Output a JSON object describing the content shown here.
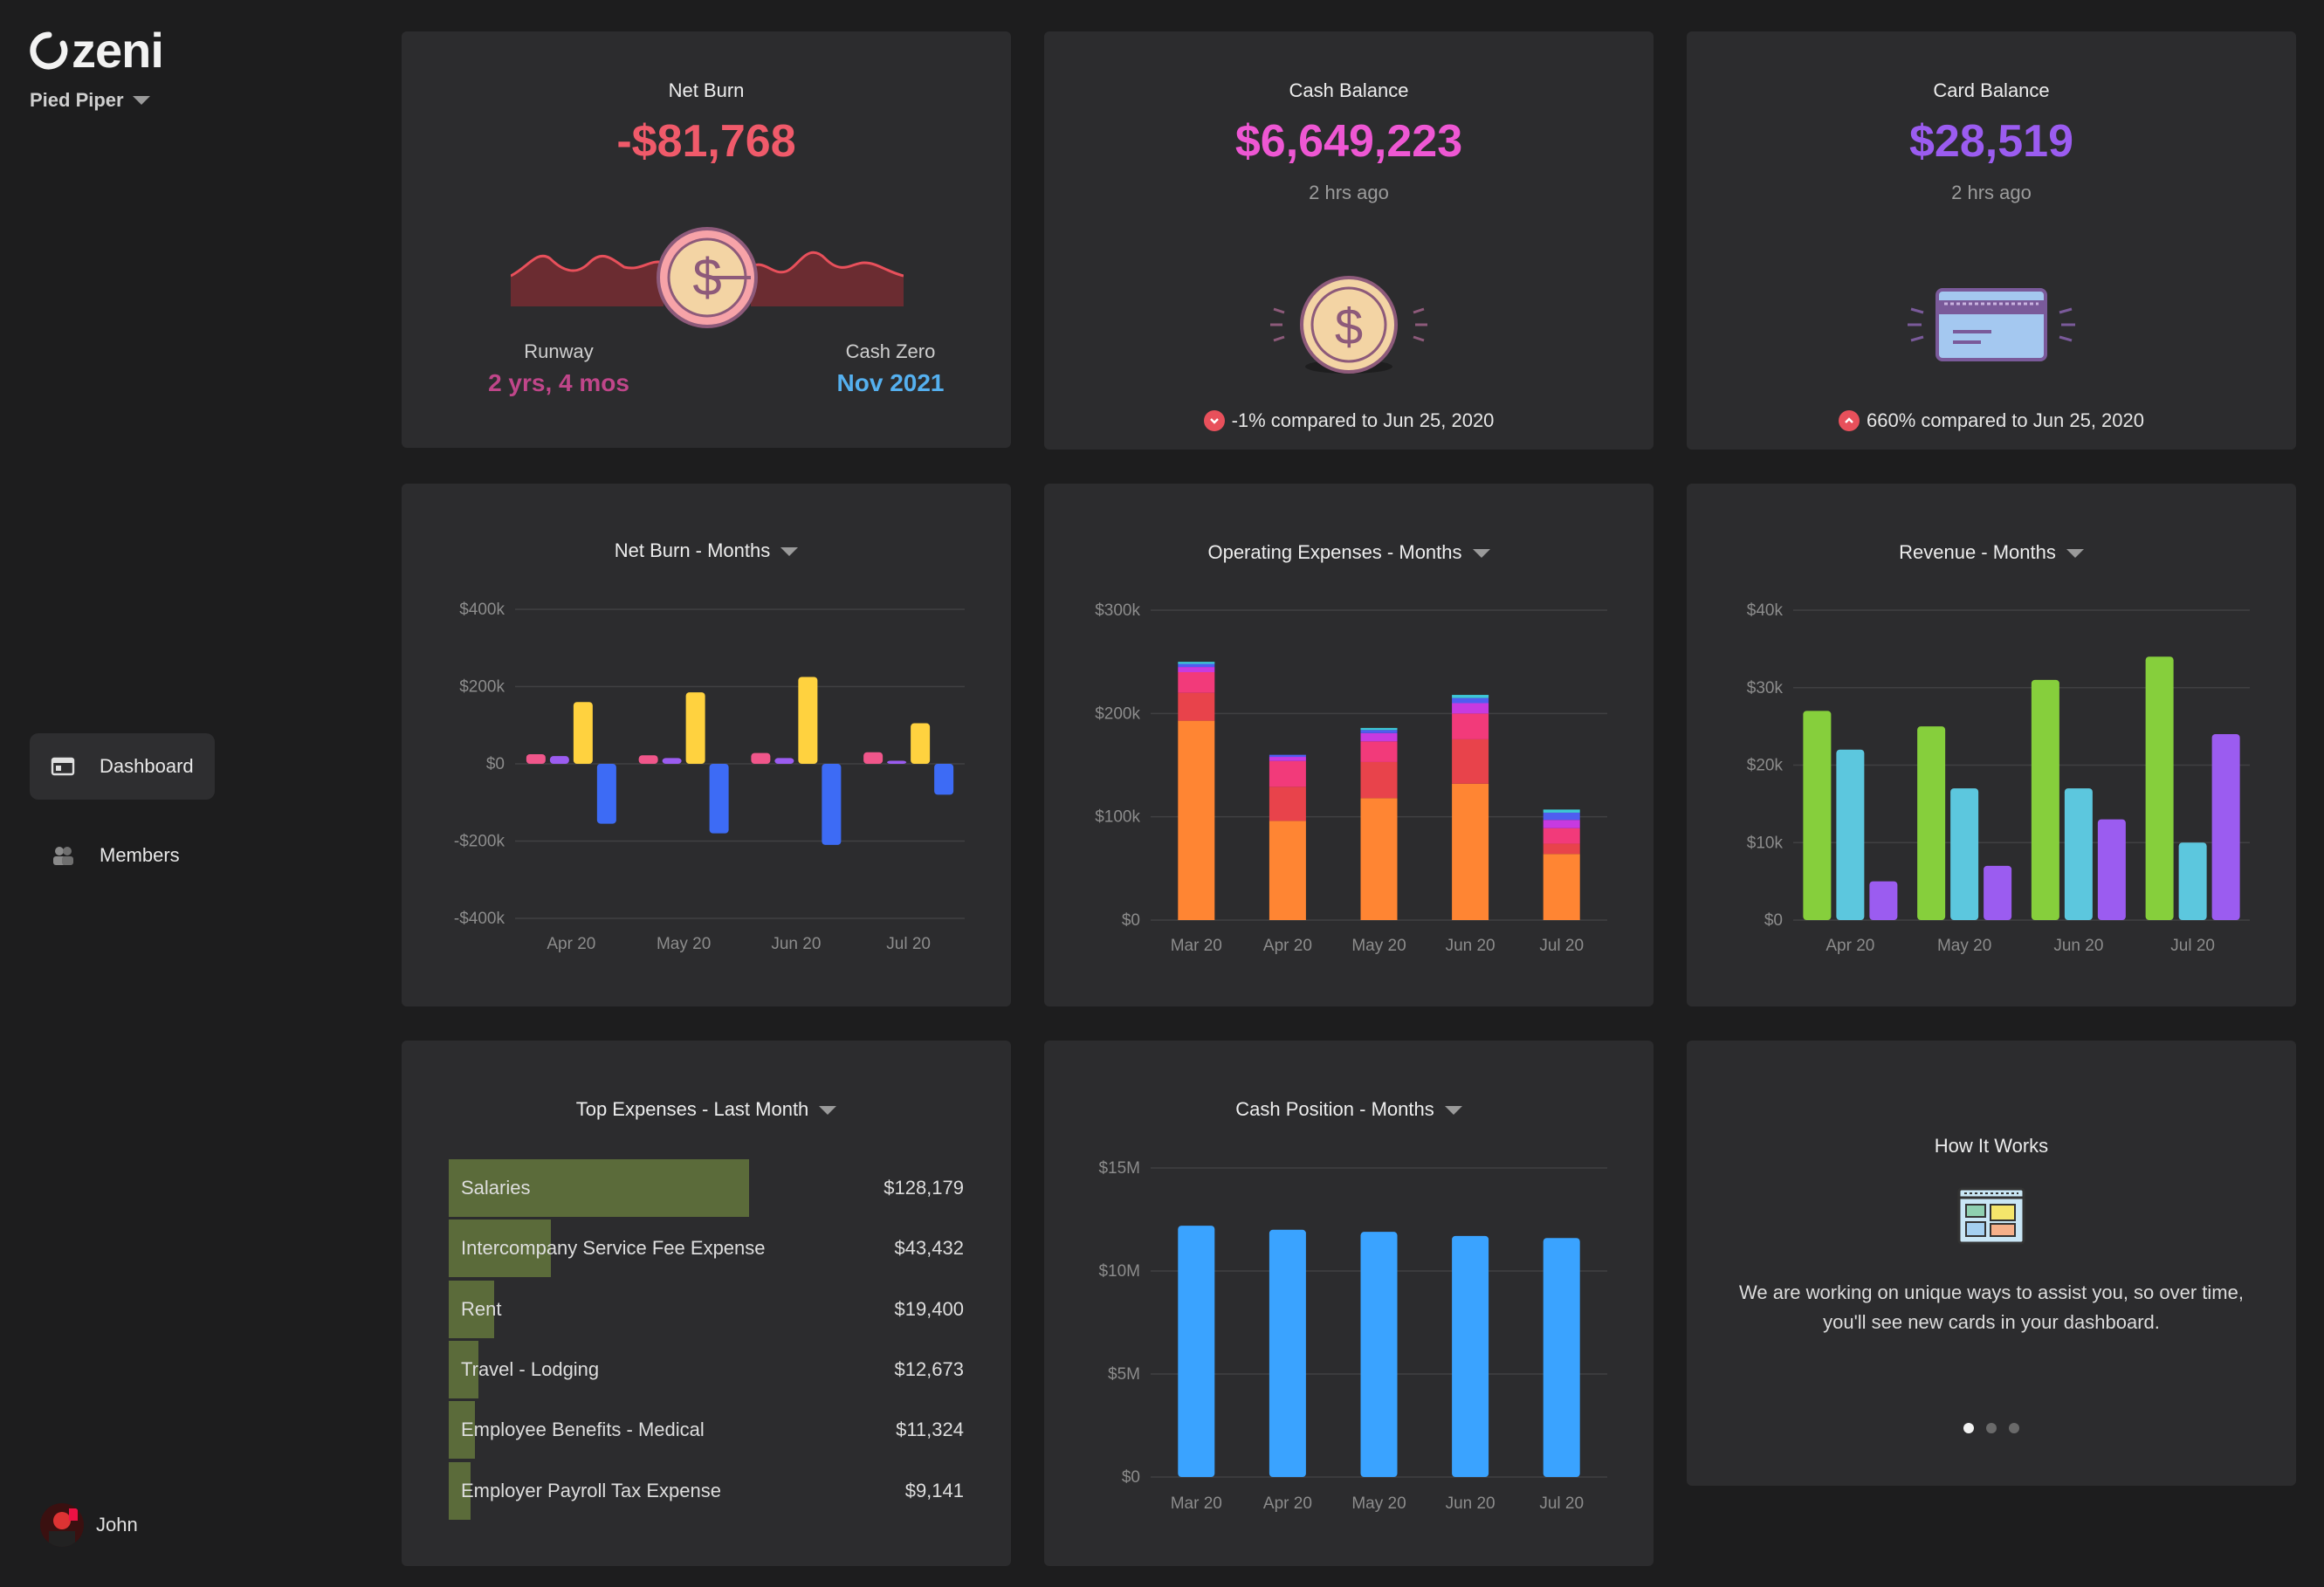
{
  "app": {
    "brand": "zeni",
    "org": "Pied Piper"
  },
  "nav": [
    {
      "label": "Dashboard",
      "icon": "dashboard-icon",
      "active": true
    },
    {
      "label": "Members",
      "icon": "members-icon",
      "active": false
    }
  ],
  "user": {
    "name": "John"
  },
  "colors": {
    "negative": "#f05a6a",
    "pink": "#ee57d3",
    "purple": "#9b5cf0",
    "runway": "#c0468a",
    "cashzero": "#55b0ef"
  },
  "net_burn": {
    "title": "Net Burn",
    "value": "-$81,768",
    "runway_label": "Runway",
    "runway_value": "2 yrs, 4 mos",
    "cashzero_label": "Cash Zero",
    "cashzero_value": "Nov 2021"
  },
  "cash_balance": {
    "title": "Cash Balance",
    "value": "$6,649,223",
    "updated": "2 hrs ago",
    "compare": "-1% compared to Jun 25, 2020"
  },
  "card_balance": {
    "title": "Card Balance",
    "value": "$28,519",
    "updated": "2 hrs ago",
    "compare": "660% compared to Jun 25, 2020"
  },
  "chart_data": [
    {
      "type": "bar",
      "title": "Net Burn - Months",
      "categories": [
        "Apr 20",
        "May 20",
        "Jun 20",
        "Jul 20"
      ],
      "yticks": [
        "$400k",
        "$200k",
        "$0",
        "-$200k",
        "-$400k"
      ],
      "ylim": [
        -400,
        400
      ],
      "units": "thousands",
      "series": [
        {
          "color": "#f0568a",
          "values": [
            25,
            22,
            28,
            30
          ]
        },
        {
          "color": "#9b5cf0",
          "values": [
            20,
            15,
            15,
            8
          ]
        },
        {
          "color": "#ffd23f",
          "values": [
            160,
            185,
            225,
            105
          ]
        },
        {
          "color": "#3d6bf5",
          "values": [
            -155,
            -180,
            -210,
            -80
          ]
        }
      ]
    },
    {
      "type": "stacked-bar",
      "title": "Operating Expenses - Months",
      "categories": [
        "Mar 20",
        "Apr 20",
        "May 20",
        "Jun 20",
        "Jul 20"
      ],
      "yticks": [
        "$300k",
        "$200k",
        "$100k",
        "$0"
      ],
      "ylim": [
        0,
        300
      ],
      "units": "thousands",
      "series": [
        {
          "color": "#ff8533",
          "values": [
            193,
            96,
            118,
            132,
            64
          ]
        },
        {
          "color": "#e8434b",
          "values": [
            27,
            33,
            35,
            43,
            10
          ]
        },
        {
          "color": "#f23a7a",
          "values": [
            20,
            25,
            20,
            25,
            15
          ]
        },
        {
          "color": "#c73ae0",
          "values": [
            5,
            4,
            8,
            10,
            8
          ]
        },
        {
          "color": "#4f5df0",
          "values": [
            3,
            2,
            3,
            5,
            7
          ]
        },
        {
          "color": "#3dc7d6",
          "values": [
            2,
            0,
            2,
            3,
            3
          ]
        }
      ]
    },
    {
      "type": "bar",
      "title": "Revenue - Months",
      "categories": [
        "Apr 20",
        "May 20",
        "Jun 20",
        "Jul 20"
      ],
      "yticks": [
        "$40k",
        "$30k",
        "$20k",
        "$10k",
        "$0"
      ],
      "ylim": [
        0,
        40
      ],
      "units": "thousands",
      "series": [
        {
          "color": "#86cf3c",
          "values": [
            27,
            25,
            31,
            34
          ]
        },
        {
          "color": "#5cc7de",
          "values": [
            22,
            17,
            17,
            10
          ]
        },
        {
          "color": "#9b5cf0",
          "values": [
            5,
            7,
            13,
            24
          ]
        }
      ]
    },
    {
      "type": "bar",
      "title": "Cash Position - Months",
      "categories": [
        "Mar 20",
        "Apr 20",
        "May 20",
        "Jun 20",
        "Jul 20"
      ],
      "yticks": [
        "$15M",
        "$10M",
        "$5M",
        "$0"
      ],
      "ylim": [
        0,
        15
      ],
      "units": "millions",
      "series": [
        {
          "color": "#3aa3ff",
          "values": [
            12.2,
            12.0,
            11.9,
            11.7,
            11.6
          ]
        }
      ]
    }
  ],
  "top_expenses": {
    "title": "Top Expenses - Last Month",
    "items": [
      {
        "label": "Salaries",
        "value": "$128,179",
        "amount": 128179
      },
      {
        "label": "Intercompany Service Fee Expense",
        "value": "$43,432",
        "amount": 43432
      },
      {
        "label": "Rent",
        "value": "$19,400",
        "amount": 19400
      },
      {
        "label": "Travel - Lodging",
        "value": "$12,673",
        "amount": 12673
      },
      {
        "label": "Employee Benefits - Medical",
        "value": "$11,324",
        "amount": 11324
      },
      {
        "label": "Employer Payroll Tax Expense",
        "value": "$9,141",
        "amount": 9141
      }
    ]
  },
  "how_it_works": {
    "title": "How It Works",
    "text_line1": "We are working on unique ways to assist you, so over time,",
    "text_line2": "you'll see new cards in your dashboard.",
    "page": 1,
    "pages": 3
  }
}
